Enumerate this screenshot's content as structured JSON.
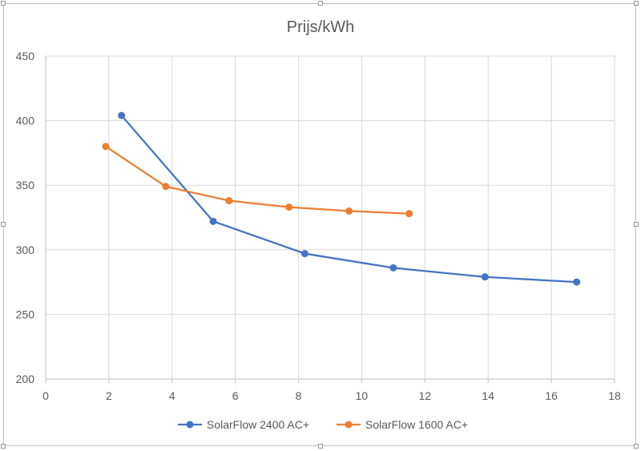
{
  "chart_data": {
    "type": "scatter",
    "title": "Prijs/kWh",
    "xlabel": "",
    "ylabel": "",
    "xlim": [
      0,
      18
    ],
    "ylim": [
      200,
      450
    ],
    "x_ticks": [
      0,
      2,
      4,
      6,
      8,
      10,
      12,
      14,
      16,
      18
    ],
    "y_ticks": [
      200,
      250,
      300,
      350,
      400,
      450
    ],
    "grid": true,
    "legend_position": "bottom",
    "series": [
      {
        "name": "SolarFlow 2400 AC+",
        "color": "#4472c4",
        "x": [
          2.4,
          5.3,
          8.2,
          11.0,
          13.9,
          16.8
        ],
        "y": [
          404,
          322,
          297,
          286,
          279,
          275
        ]
      },
      {
        "name": "SolarFlow 1600 AC+",
        "color": "#ed7d31",
        "x": [
          1.9,
          3.8,
          5.8,
          7.7,
          9.6,
          11.5
        ],
        "y": [
          380,
          349,
          338,
          333,
          330,
          328
        ]
      }
    ]
  }
}
